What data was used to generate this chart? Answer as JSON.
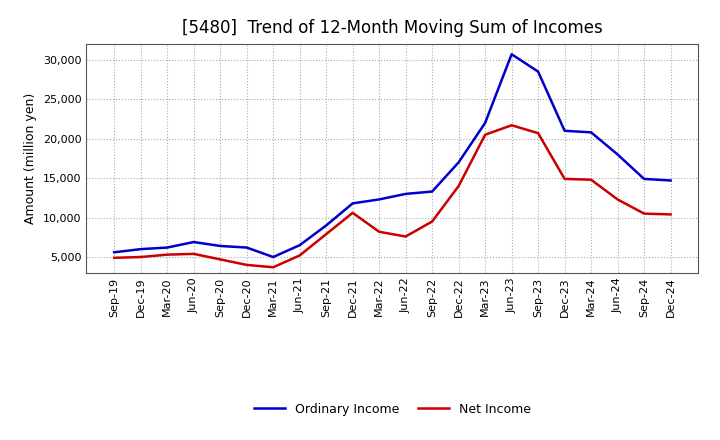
{
  "title": "[5480]  Trend of 12-Month Moving Sum of Incomes",
  "ylabel": "Amount (million yen)",
  "background_color": "#ffffff",
  "grid_color": "#aaaaaa",
  "x_labels": [
    "Sep-19",
    "Dec-19",
    "Mar-20",
    "Jun-20",
    "Sep-20",
    "Dec-20",
    "Mar-21",
    "Jun-21",
    "Sep-21",
    "Dec-21",
    "Mar-22",
    "Jun-22",
    "Sep-22",
    "Dec-22",
    "Mar-23",
    "Jun-23",
    "Sep-23",
    "Dec-23",
    "Mar-24",
    "Jun-24",
    "Sep-24",
    "Dec-24"
  ],
  "ordinary_income": [
    5600,
    6000,
    6200,
    6900,
    6400,
    6200,
    5000,
    6500,
    9000,
    11800,
    12300,
    13000,
    13300,
    17000,
    22000,
    30700,
    28500,
    21000,
    20800,
    18000,
    14900,
    14700
  ],
  "net_income": [
    4900,
    5000,
    5300,
    5400,
    4700,
    4000,
    3700,
    5200,
    7900,
    10600,
    8200,
    7600,
    9500,
    14000,
    20500,
    21700,
    20700,
    14900,
    14800,
    12300,
    10500,
    10400
  ],
  "ordinary_color": "#0000cc",
  "net_color": "#cc0000",
  "line_width": 1.8,
  "ylim": [
    3000,
    32000
  ],
  "yticks": [
    5000,
    10000,
    15000,
    20000,
    25000,
    30000
  ],
  "title_fontsize": 12,
  "legend_labels": [
    "Ordinary Income",
    "Net Income"
  ]
}
